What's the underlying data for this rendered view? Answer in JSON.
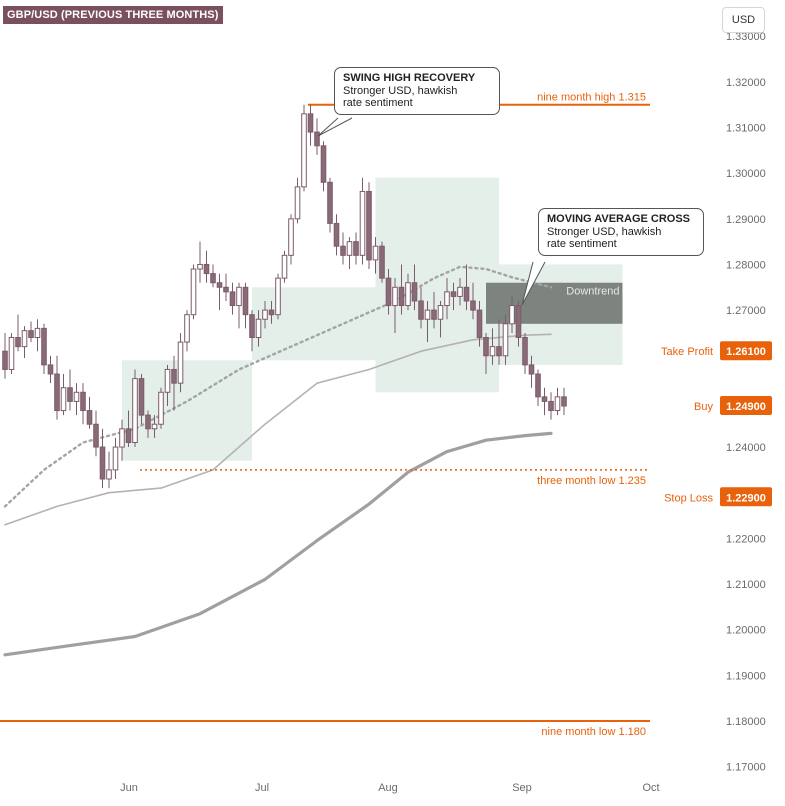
{
  "title": "GBP/USD (PREVIOUS THREE MONTHS)",
  "unit_button": "USD",
  "annotations": {
    "swing_high": {
      "head": "SWING HIGH RECOVERY",
      "body": "Stronger USD, hawkish\nrate sentiment"
    },
    "ma_cross": {
      "head": "MOVING AVERAGE CROSS",
      "body": "Stronger USD, hawkish\nrate sentiment"
    }
  },
  "colors": {
    "bull_candle": "#ffffff",
    "bear_candle": "#8a6a78",
    "wick": "#7b5c6a",
    "orange": "#e8620c",
    "box": "#e3efe8",
    "dark_box": "#7d837f",
    "ma_light": "#b5b1b4",
    "ma_heavy": "#a39ea2",
    "ma_dotted": "#a6a3a5",
    "axis_text": "#6b6b6b"
  },
  "chart_data": {
    "type": "candlestick",
    "title": "GBP/USD (PREVIOUS THREE MONTHS)",
    "ylim": [
      1.1675,
      1.3375
    ],
    "y_ticks": [
      "1.33000",
      "1.32000",
      "1.31000",
      "1.30000",
      "1.29000",
      "1.28000",
      "1.27000",
      "1.26000",
      "1.25000",
      "1.24000",
      "1.23000",
      "1.22000",
      "1.21000",
      "1.20000",
      "1.19000",
      "1.18000",
      "1.17000"
    ],
    "x_labels": [
      "Jun",
      "Jul",
      "Aug",
      "Sep",
      "Oct"
    ],
    "candles": [
      [
        1.261,
        1.265,
        1.255,
        1.257
      ],
      [
        1.257,
        1.265,
        1.256,
        1.264
      ],
      [
        1.264,
        1.269,
        1.261,
        1.262
      ],
      [
        1.262,
        1.2665,
        1.2595,
        1.2655
      ],
      [
        1.2655,
        1.2675,
        1.263,
        1.264
      ],
      [
        1.264,
        1.268,
        1.261,
        1.266
      ],
      [
        1.266,
        1.267,
        1.256,
        1.258
      ],
      [
        1.258,
        1.26,
        1.254,
        1.256
      ],
      [
        1.256,
        1.26,
        1.246,
        1.248
      ],
      [
        1.248,
        1.256,
        1.247,
        1.253
      ],
      [
        1.253,
        1.257,
        1.248,
        1.25
      ],
      [
        1.25,
        1.254,
        1.247,
        1.252
      ],
      [
        1.252,
        1.254,
        1.245,
        1.248
      ],
      [
        1.248,
        1.251,
        1.244,
        1.245
      ],
      [
        1.245,
        1.248,
        1.238,
        1.24
      ],
      [
        1.24,
        1.244,
        1.231,
        1.233
      ],
      [
        1.233,
        1.239,
        1.231,
        1.235
      ],
      [
        1.235,
        1.242,
        1.233,
        1.24
      ],
      [
        1.24,
        1.246,
        1.237,
        1.244
      ],
      [
        1.244,
        1.248,
        1.24,
        1.241
      ],
      [
        1.241,
        1.257,
        1.24,
        1.255
      ],
      [
        1.255,
        1.256,
        1.245,
        1.247
      ],
      [
        1.247,
        1.248,
        1.242,
        1.244
      ],
      [
        1.244,
        1.247,
        1.242,
        1.245
      ],
      [
        1.245,
        1.253,
        1.244,
        1.252
      ],
      [
        1.252,
        1.258,
        1.249,
        1.257
      ],
      [
        1.257,
        1.26,
        1.248,
        1.254
      ],
      [
        1.254,
        1.265,
        1.252,
        1.263
      ],
      [
        1.263,
        1.27,
        1.261,
        1.269
      ],
      [
        1.269,
        1.28,
        1.268,
        1.279
      ],
      [
        1.279,
        1.285,
        1.276,
        1.28
      ],
      [
        1.28,
        1.283,
        1.276,
        1.278
      ],
      [
        1.278,
        1.28,
        1.275,
        1.276
      ],
      [
        1.276,
        1.278,
        1.27,
        1.275
      ],
      [
        1.275,
        1.278,
        1.272,
        1.274
      ],
      [
        1.274,
        1.276,
        1.269,
        1.271
      ],
      [
        1.271,
        1.276,
        1.266,
        1.275
      ],
      [
        1.275,
        1.276,
        1.266,
        1.269
      ],
      [
        1.269,
        1.27,
        1.261,
        1.264
      ],
      [
        1.264,
        1.27,
        1.262,
        1.268
      ],
      [
        1.268,
        1.272,
        1.266,
        1.27
      ],
      [
        1.27,
        1.272,
        1.267,
        1.269
      ],
      [
        1.269,
        1.278,
        1.268,
        1.277
      ],
      [
        1.277,
        1.283,
        1.276,
        1.282
      ],
      [
        1.282,
        1.291,
        1.28,
        1.29
      ],
      [
        1.29,
        1.299,
        1.289,
        1.297
      ],
      [
        1.297,
        1.315,
        1.296,
        1.313
      ],
      [
        1.313,
        1.315,
        1.306,
        1.309
      ],
      [
        1.309,
        1.312,
        1.304,
        1.306
      ],
      [
        1.306,
        1.307,
        1.296,
        1.298
      ],
      [
        1.298,
        1.299,
        1.287,
        1.289
      ],
      [
        1.289,
        1.291,
        1.282,
        1.284
      ],
      [
        1.284,
        1.287,
        1.28,
        1.282
      ],
      [
        1.282,
        1.286,
        1.279,
        1.285
      ],
      [
        1.285,
        1.287,
        1.28,
        1.282
      ],
      [
        1.282,
        1.299,
        1.28,
        1.296
      ],
      [
        1.296,
        1.298,
        1.279,
        1.281
      ],
      [
        1.281,
        1.286,
        1.278,
        1.284
      ],
      [
        1.284,
        1.285,
        1.276,
        1.277
      ],
      [
        1.277,
        1.279,
        1.269,
        1.271
      ],
      [
        1.271,
        1.277,
        1.265,
        1.275
      ],
      [
        1.275,
        1.28,
        1.269,
        1.271
      ],
      [
        1.271,
        1.278,
        1.27,
        1.276
      ],
      [
        1.276,
        1.28,
        1.27,
        1.272
      ],
      [
        1.272,
        1.275,
        1.266,
        1.268
      ],
      [
        1.268,
        1.272,
        1.263,
        1.27
      ],
      [
        1.27,
        1.274,
        1.266,
        1.268
      ],
      [
        1.268,
        1.272,
        1.264,
        1.271
      ],
      [
        1.271,
        1.277,
        1.268,
        1.274
      ],
      [
        1.274,
        1.276,
        1.27,
        1.273
      ],
      [
        1.273,
        1.277,
        1.271,
        1.275
      ],
      [
        1.275,
        1.28,
        1.27,
        1.272
      ],
      [
        1.272,
        1.276,
        1.268,
        1.27
      ],
      [
        1.27,
        1.272,
        1.262,
        1.264
      ],
      [
        1.264,
        1.265,
        1.256,
        1.26
      ],
      [
        1.26,
        1.266,
        1.258,
        1.262
      ],
      [
        1.262,
        1.268,
        1.258,
        1.26
      ],
      [
        1.26,
        1.269,
        1.258,
        1.267
      ],
      [
        1.267,
        1.273,
        1.265,
        1.271
      ],
      [
        1.271,
        1.272,
        1.262,
        1.264
      ],
      [
        1.264,
        1.265,
        1.256,
        1.258
      ],
      [
        1.258,
        1.26,
        1.253,
        1.256
      ],
      [
        1.256,
        1.257,
        1.249,
        1.251
      ],
      [
        1.251,
        1.253,
        1.247,
        1.25
      ],
      [
        1.25,
        1.252,
        1.246,
        1.248
      ],
      [
        1.248,
        1.253,
        1.247,
        1.251
      ],
      [
        1.251,
        1.253,
        1.247,
        1.249
      ]
    ],
    "series": [
      {
        "values": [
          [
            0,
            1.223
          ],
          [
            8,
            1.227
          ],
          [
            16,
            1.23
          ],
          [
            24,
            1.231
          ],
          [
            32,
            1.235
          ],
          [
            40,
            1.245
          ],
          [
            48,
            1.254
          ],
          [
            56,
            1.257
          ],
          [
            64,
            1.261
          ],
          [
            72,
            1.2635
          ],
          [
            80,
            1.2645
          ],
          [
            84,
            1.2647
          ]
        ]
      },
      {
        "values": [
          [
            0,
            1.1945
          ],
          [
            10,
            1.1965
          ],
          [
            20,
            1.1985
          ],
          [
            30,
            1.2035
          ],
          [
            40,
            1.211
          ],
          [
            48,
            1.2195
          ],
          [
            56,
            1.2275
          ],
          [
            62,
            1.2345
          ],
          [
            68,
            1.239
          ],
          [
            74,
            1.2415
          ],
          [
            80,
            1.2425
          ],
          [
            84,
            1.243
          ]
        ]
      },
      {
        "values": [
          [
            0,
            1.227
          ],
          [
            6,
            1.235
          ],
          [
            12,
            1.241
          ],
          [
            20,
            1.244
          ],
          [
            28,
            1.25
          ],
          [
            36,
            1.257
          ],
          [
            44,
            1.262
          ],
          [
            52,
            1.267
          ],
          [
            60,
            1.272
          ],
          [
            66,
            1.277
          ],
          [
            70,
            1.2795
          ],
          [
            74,
            1.279
          ],
          [
            78,
            1.2772
          ],
          [
            84,
            1.275
          ]
        ]
      }
    ],
    "levels": [
      {
        "label": "nine month high 1.315",
        "value": 1.315
      },
      {
        "label": "three month low 1.235",
        "value": 1.235
      },
      {
        "label": "nine month low 1.180",
        "value": 1.18
      }
    ],
    "price_tags": [
      {
        "label": "Take Profit",
        "value": "1.26100"
      },
      {
        "label": "Buy",
        "value": "1.24900"
      },
      {
        "label": "Stop Loss",
        "value": "1.22900"
      }
    ],
    "zones": [
      {
        "from_candle": 18,
        "to_candle": 38,
        "y_from": 1.237,
        "y_to": 1.259
      },
      {
        "from_candle": 38,
        "to_candle": 57,
        "y_from": 1.259,
        "y_to": 1.275
      },
      {
        "from_candle": 57,
        "to_candle": 76,
        "y_from": 1.252,
        "y_to": 1.275
      },
      {
        "from_candle": 57,
        "to_candle": 76,
        "y_from": 1.275,
        "y_to": 1.299
      },
      {
        "from_candle": 76,
        "to_candle": 95,
        "y_from": 1.258,
        "y_to": 1.28
      }
    ],
    "dark_zone": {
      "label": "Downtrend",
      "from_candle": 74,
      "to_candle": 95,
      "y_from": 1.267,
      "y_to": 1.276
    }
  }
}
